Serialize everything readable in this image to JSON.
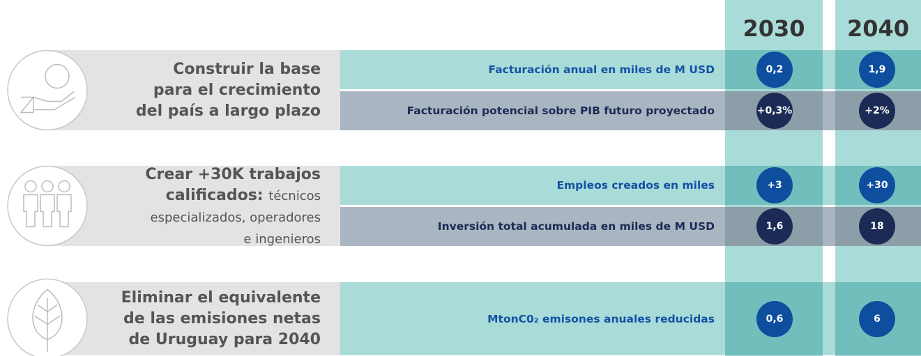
{
  "columns": [
    "2030",
    "2040"
  ],
  "sections": [
    {
      "title_lines": [
        "Construir la base",
        "para el crecimiento",
        "del país a largo plazo"
      ],
      "rows": [
        {
          "label": "Facturación anual en miles de M USD",
          "values": [
            "0,2",
            "1,9"
          ],
          "color": "#0d4f9e"
        },
        {
          "label": "Facturación potencial sobre PIB futuro proyectado",
          "values": [
            "+0,3%",
            "+2%"
          ],
          "color": "#1c2b55"
        }
      ]
    },
    {
      "title_lines": [
        "Crear +30K trabajos",
        "calificados:"
      ],
      "detail_lines": [
        "técnicos",
        "especializados, operadores",
        "e ingenieros"
      ],
      "rows": [
        {
          "label": "Empleos creados en miles",
          "values": [
            "+3",
            "+30"
          ],
          "color": "#0d4f9e"
        },
        {
          "label": "Inversión total acumulada en miles de M USD",
          "values": [
            "1,6",
            "18"
          ],
          "color": "#1c2b55"
        }
      ]
    },
    {
      "title_lines": [
        "Eliminar el equivalente",
        "de las emisiones netas",
        "de Uruguay para 2040"
      ],
      "rows": [
        {
          "label": "MtonC0₂ emisones anuales reducidas",
          "values": [
            "0,6",
            "6"
          ],
          "color": "#0d4f9e"
        }
      ]
    }
  ]
}
